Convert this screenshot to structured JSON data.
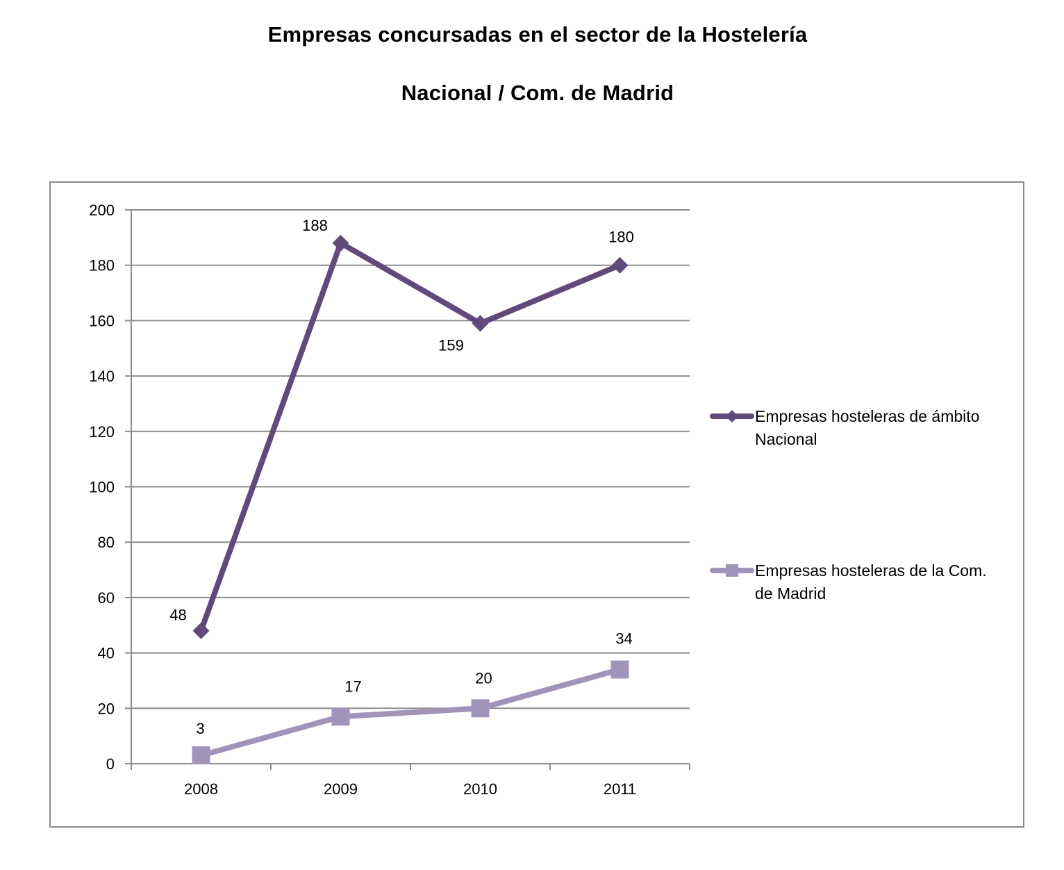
{
  "chart_data": {
    "type": "line",
    "title": "Empresas concursadas en el sector de la Hostelería",
    "subtitle": "Nacional / Com. de Madrid",
    "xlabel": "",
    "ylabel": "",
    "categories": [
      "2008",
      "2009",
      "2010",
      "2011"
    ],
    "ylim": [
      0,
      200
    ],
    "yticks": [
      0,
      20,
      40,
      60,
      80,
      100,
      120,
      140,
      160,
      180,
      200
    ],
    "grid": true,
    "legend_position": "right",
    "series": [
      {
        "name": "Empresas hosteleras de ámbito Nacional",
        "legend_lines": [
          "Empresas hosteleras de ámbito",
          "Nacional"
        ],
        "values": [
          48,
          188,
          159,
          180
        ],
        "labels": [
          "48",
          "188",
          "159",
          "180"
        ],
        "color": "#604a7b",
        "marker": "diamond"
      },
      {
        "name": "Empresas hosteleras de la Com. de Madrid",
        "legend_lines": [
          "Empresas hosteleras de la Com.",
          "de Madrid"
        ],
        "values": [
          3,
          17,
          20,
          34
        ],
        "labels": [
          "3",
          "17",
          "20",
          "34"
        ],
        "color": "#a194bb",
        "marker": "square"
      }
    ]
  }
}
